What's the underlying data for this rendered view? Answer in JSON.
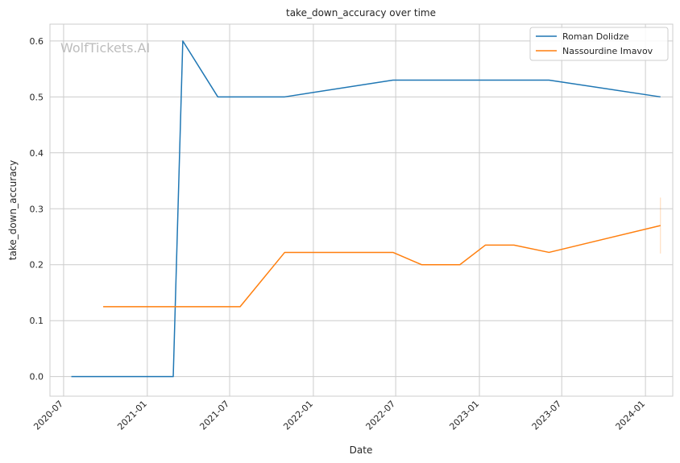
{
  "watermark": "WolfTickets.AI",
  "chart_data": {
    "type": "line",
    "title": "take_down_accuracy over time",
    "xlabel": "Date",
    "ylabel": "take_down_accuracy",
    "x_type": "date",
    "xlim": [
      "2020-06-01",
      "2024-03-01"
    ],
    "ylim": [
      -0.035,
      0.63
    ],
    "x_ticks": [
      "2020-07-01",
      "2021-01-01",
      "2021-07-01",
      "2022-01-01",
      "2022-07-01",
      "2023-01-01",
      "2023-07-01",
      "2024-01-01"
    ],
    "x_tick_labels": [
      "2020-07",
      "2021-01",
      "2021-07",
      "2022-01",
      "2022-07",
      "2023-01",
      "2023-07",
      "2024-01"
    ],
    "y_ticks": [
      0.0,
      0.1,
      0.2,
      0.3,
      0.4,
      0.5,
      0.6
    ],
    "y_tick_labels": [
      "0.0",
      "0.1",
      "0.2",
      "0.3",
      "0.4",
      "0.5",
      "0.6"
    ],
    "grid": true,
    "legend_position": "top-right",
    "series": [
      {
        "name": "Roman Dolidze",
        "color": "#1f77b4",
        "points": [
          [
            "2020-07-18",
            0.0
          ],
          [
            "2021-02-27",
            0.0
          ],
          [
            "2021-03-20",
            0.6
          ],
          [
            "2021-06-05",
            0.5
          ],
          [
            "2021-10-30",
            0.5
          ],
          [
            "2022-06-25",
            0.53
          ],
          [
            "2023-06-03",
            0.53
          ],
          [
            "2024-02-03",
            0.5
          ]
        ]
      },
      {
        "name": "Nassourdine Imavov",
        "color": "#ff7f0e",
        "points": [
          [
            "2020-09-26",
            0.125
          ],
          [
            "2021-07-24",
            0.125
          ],
          [
            "2021-10-30",
            0.222
          ],
          [
            "2022-06-25",
            0.222
          ],
          [
            "2022-08-27",
            0.2
          ],
          [
            "2022-11-19",
            0.2
          ],
          [
            "2023-01-14",
            0.235
          ],
          [
            "2023-03-18",
            0.235
          ],
          [
            "2023-06-03",
            0.222
          ],
          [
            "2024-02-03",
            0.27
          ]
        ],
        "error_bar": {
          "x": "2024-02-03",
          "low": 0.22,
          "high": 0.32
        }
      }
    ]
  }
}
